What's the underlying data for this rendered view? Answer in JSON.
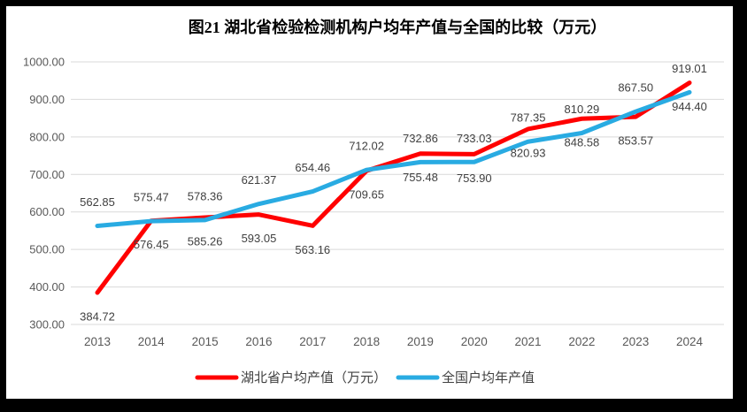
{
  "title": "图21 湖北省检验检测机构户均年产值与全国的比较（万元）",
  "chart_data": {
    "type": "line",
    "title": "图21 湖北省检验检测机构户均年产值与全国的比较（万元）",
    "categories": [
      "2013",
      "2014",
      "2015",
      "2016",
      "2017",
      "2018",
      "2019",
      "2020",
      "2021",
      "2022",
      "2023",
      "2024"
    ],
    "series": [
      {
        "name": "湖北省户均产值（万元）",
        "color": "#FF0000",
        "label_position": "below",
        "values": [
          384.72,
          576.45,
          585.26,
          593.05,
          563.16,
          709.65,
          755.48,
          753.9,
          820.93,
          848.58,
          853.57,
          944.4
        ]
      },
      {
        "name": "全国户均年产值",
        "color": "#29ABE2",
        "label_position": "above",
        "values": [
          562.85,
          575.47,
          578.36,
          621.37,
          654.46,
          712.02,
          732.86,
          733.03,
          787.35,
          810.29,
          867.5,
          919.01
        ]
      }
    ],
    "xlabel": "",
    "ylabel": "",
    "ylim": [
      300,
      1000
    ],
    "y_tick_step": 100,
    "y_tick_labels": [
      "1000.00",
      "900.00",
      "800.00",
      "700.00",
      "600.00",
      "500.00",
      "400.00",
      "300.00"
    ],
    "grid": "horizontal",
    "legend_position": "bottom",
    "grid_color": "#D9D9D9",
    "axis_text_color": "#595959",
    "label_text_color": "#404040"
  }
}
